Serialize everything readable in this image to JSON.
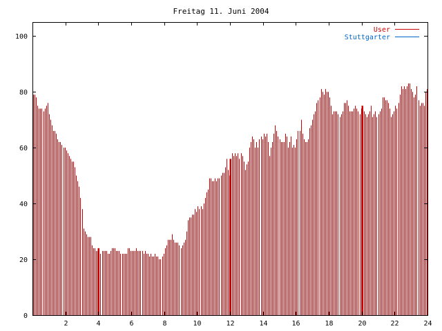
{
  "title": "Freitag 11. Juni 2004",
  "chart_data": {
    "type": "bar",
    "title": "Freitag 11. Juni 2004",
    "xlabel": "",
    "ylabel": "",
    "xlim": [
      0,
      24
    ],
    "ylim": [
      0,
      105
    ],
    "x_ticks": [
      2,
      4,
      6,
      8,
      10,
      12,
      14,
      16,
      18,
      20,
      22,
      24
    ],
    "y_ticks": [
      0,
      20,
      40,
      60,
      80,
      100
    ],
    "grid": false,
    "legend_position": "top-right",
    "series": [
      {
        "name": "User",
        "color": "#cc0000",
        "values": [
          79,
          79,
          78,
          75,
          74,
          74,
          74,
          73,
          74,
          75,
          76,
          72,
          70,
          68,
          66,
          66,
          65,
          63,
          62,
          62,
          61,
          60,
          60,
          59,
          58,
          57,
          56,
          55,
          55,
          53,
          50,
          48,
          46,
          42,
          38,
          31,
          30,
          29,
          28,
          28,
          28,
          25,
          24,
          24,
          23,
          23,
          24,
          22,
          23,
          23,
          23,
          23,
          22,
          22,
          23,
          24,
          24,
          24,
          23,
          23,
          23,
          22,
          22,
          22,
          22,
          22,
          24,
          24,
          23,
          23,
          23,
          23,
          24,
          23,
          23,
          23,
          23,
          22,
          23,
          22,
          22,
          21,
          22,
          21,
          21,
          22,
          21,
          21,
          20,
          20,
          21,
          22,
          24,
          25,
          27,
          27,
          27,
          29,
          27,
          26,
          26,
          26,
          25,
          24,
          25,
          26,
          27,
          30,
          34,
          35,
          35,
          36,
          36,
          38,
          37,
          39,
          38,
          39,
          38,
          40,
          42,
          44,
          45,
          49,
          49,
          48,
          48,
          49,
          48,
          49,
          49,
          50,
          51,
          51,
          53,
          56,
          52,
          50,
          56,
          58,
          57,
          58,
          57,
          58,
          56,
          58,
          57,
          55,
          52,
          54,
          55,
          60,
          62,
          64,
          63,
          60,
          62,
          60,
          63,
          64,
          63,
          65,
          64,
          65,
          62,
          57,
          60,
          62,
          65,
          68,
          66,
          64,
          63,
          62,
          62,
          62,
          65,
          64,
          60,
          62,
          64,
          60,
          61,
          60,
          63,
          66,
          66,
          70,
          65,
          63,
          62,
          62,
          63,
          67,
          68,
          70,
          72,
          73,
          76,
          77,
          78,
          81,
          80,
          79,
          81,
          80,
          80,
          78,
          75,
          72,
          73,
          73,
          73,
          72,
          71,
          72,
          73,
          76,
          76,
          77,
          75,
          73,
          73,
          73,
          74,
          75,
          74,
          73,
          72,
          74,
          75,
          73,
          72,
          71,
          72,
          73,
          75,
          71,
          72,
          73,
          71,
          72,
          73,
          74,
          78,
          78,
          77,
          77,
          76,
          74,
          71,
          72,
          73,
          75,
          74,
          76,
          79,
          82,
          81,
          82,
          81,
          82,
          83,
          83,
          81,
          80,
          78,
          79,
          82,
          77,
          75,
          76,
          76,
          75,
          80,
          81
        ],
        "markers": [
          {
            "x": 4.0,
            "value": 24
          },
          {
            "x": 12.0,
            "value": 56
          },
          {
            "x": 20.0,
            "value": 75
          }
        ]
      },
      {
        "name": "Stuttgarter",
        "color": "#0066cc",
        "values": [],
        "markers": []
      }
    ]
  }
}
